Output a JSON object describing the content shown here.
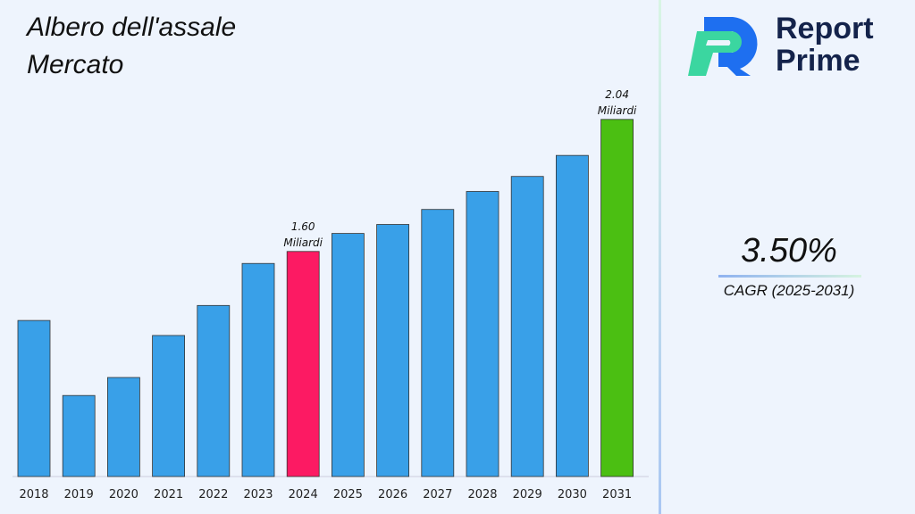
{
  "title_line1": "Albero dell'assale",
  "title_line2": "Mercato",
  "logo": {
    "line1": "Report",
    "line2": "Prime"
  },
  "cagr": {
    "value": "3.50%",
    "label": "CAGR (2025-2031)"
  },
  "chart_data": {
    "type": "bar",
    "categories": [
      "2018",
      "2019",
      "2020",
      "2021",
      "2022",
      "2023",
      "2024",
      "2025",
      "2026",
      "2027",
      "2028",
      "2029",
      "2030",
      "2031"
    ],
    "values": [
      1.37,
      1.12,
      1.18,
      1.32,
      1.42,
      1.56,
      1.6,
      1.66,
      1.69,
      1.74,
      1.8,
      1.85,
      1.92,
      2.04
    ],
    "ylim": [
      0.85,
      2.2
    ],
    "colors": {
      "default": "#39a0e8",
      "highlight_2024": "#fc1a63",
      "highlight_2031": "#4bbf12"
    },
    "annotations": [
      {
        "category": "2024",
        "value_text": "1.60",
        "unit": "Miliardi"
      },
      {
        "category": "2031",
        "value_text": "2.04",
        "unit": "Miliardi"
      }
    ],
    "grid": false
  }
}
